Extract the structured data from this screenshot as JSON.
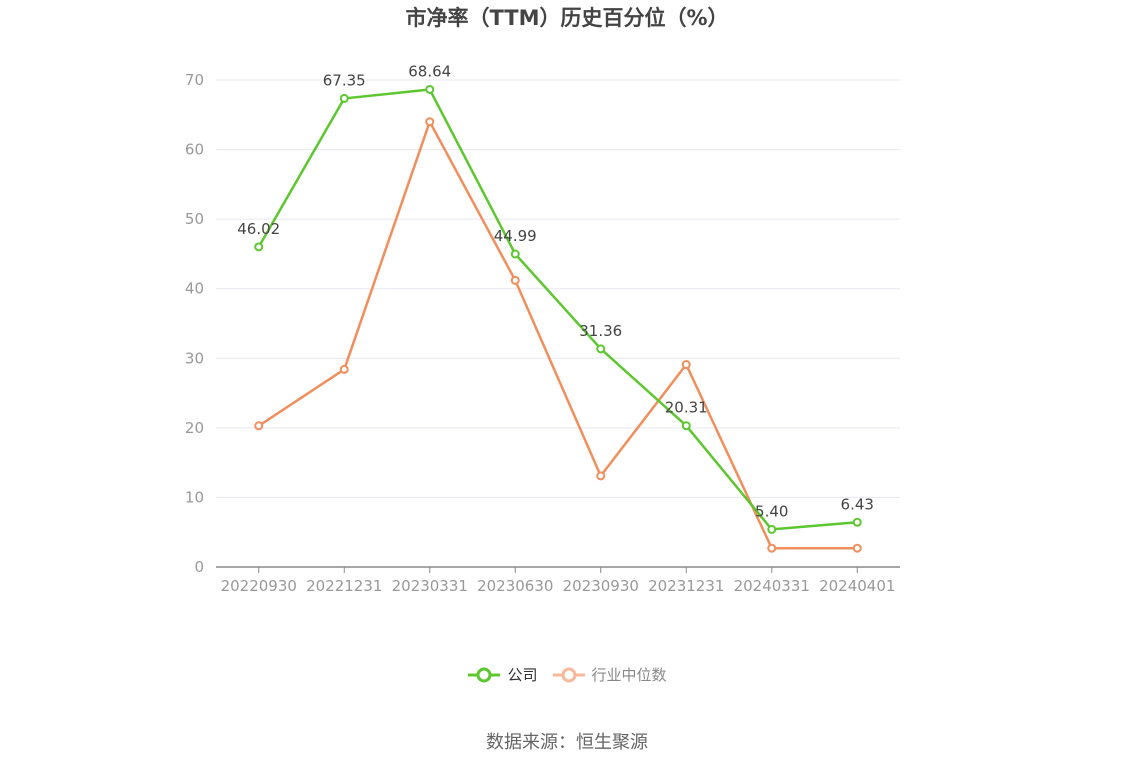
{
  "chart_data": {
    "type": "line",
    "title": "市净率（TTM）历史百分位（%）",
    "categories": [
      "20220930",
      "20221231",
      "20230331",
      "20230630",
      "20230930",
      "20231231",
      "20240331",
      "20240401"
    ],
    "ylim": [
      0,
      70
    ],
    "yticks": [
      0,
      10,
      20,
      30,
      40,
      50,
      60,
      70
    ],
    "grid": true,
    "legend_position": "bottom",
    "series": [
      {
        "name": "公司",
        "color": "#5cc72e",
        "values": [
          46.02,
          67.35,
          68.64,
          44.99,
          31.36,
          20.31,
          5.4,
          6.43
        ],
        "labels": [
          "46.02",
          "67.35",
          "68.64",
          "44.99",
          "31.36",
          "20.31",
          "5.40",
          "6.43"
        ]
      },
      {
        "name": "行业中位数",
        "color": "#f28e5c",
        "values": [
          20.3,
          28.4,
          64.0,
          41.2,
          13.1,
          29.1,
          2.7,
          2.7
        ]
      }
    ],
    "source": "数据来源：恒生聚源"
  }
}
